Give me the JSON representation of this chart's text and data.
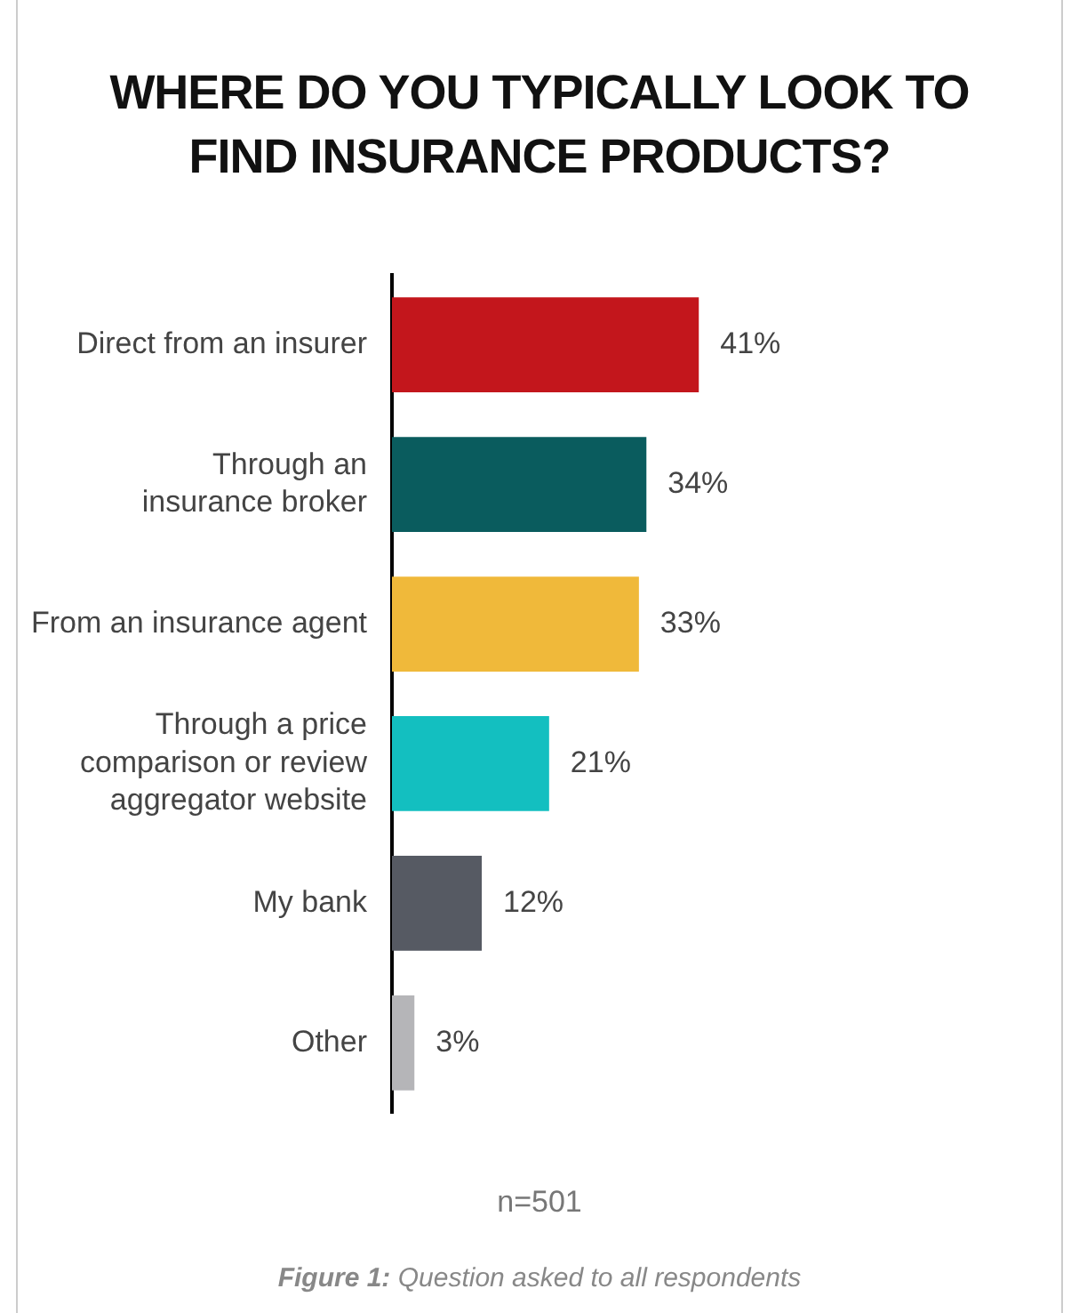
{
  "chart_data": {
    "type": "bar",
    "orientation": "horizontal",
    "title": "WHERE DO YOU TYPICALLY LOOK TO FIND INSURANCE PRODUCTS?",
    "categories": [
      "Direct from an insurer",
      "Through an insurance broker",
      "From an insurance agent",
      "Through a price comparison or review aggregator website",
      "My bank",
      "Other"
    ],
    "values": [
      41,
      34,
      33,
      21,
      12,
      3
    ],
    "colors": [
      "#c3161c",
      "#0a5c5e",
      "#f0b93a",
      "#13bfc0",
      "#565a63",
      "#b5b5b8"
    ],
    "value_labels": [
      "41%",
      "34%",
      "33%",
      "21%",
      "12%",
      "3%"
    ],
    "tick_labels": "y",
    "grid": false,
    "legend": false,
    "annotations": [
      "n=501",
      "Figure 1: Question asked to all respondents"
    ]
  }
}
